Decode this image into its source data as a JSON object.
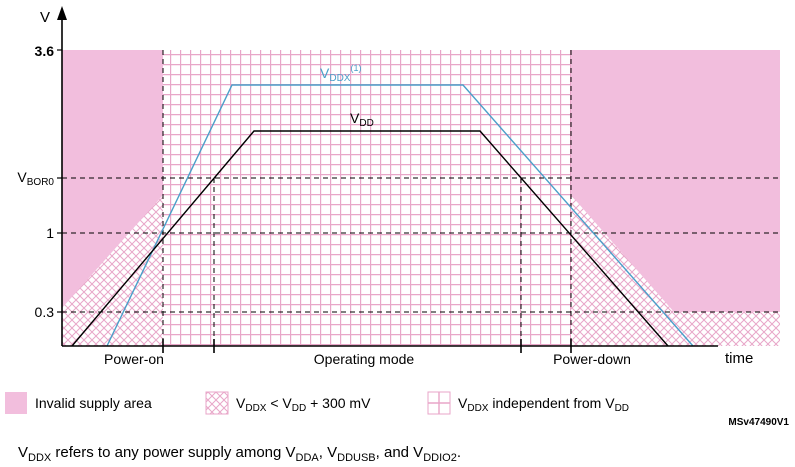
{
  "axes": {
    "y_label": "V",
    "x_label": "time",
    "y_ticks": {
      "t36": "3.6",
      "bor_main": "V",
      "bor_sub": "BOR0",
      "t1": "1",
      "t03": "0.3"
    }
  },
  "curves": {
    "vddx_main": "V",
    "vddx_sub": "DDX",
    "vddx_note": "(1)",
    "vdd_main": "V",
    "vdd_sub": "DD",
    "vddx_color": "#4a9fc9",
    "vdd_color": "#000000"
  },
  "phases": {
    "power_on": "Power-on",
    "operating": "Operating mode",
    "power_down": "Power-down"
  },
  "legend": {
    "invalid": "Invalid supply area",
    "lt_v1": "V",
    "lt_s1": "DDX",
    "lt_mid": " < V",
    "lt_s2": "DD",
    "lt_end": " + 300 mV",
    "ind_v1": "V",
    "ind_s1": "DDX",
    "ind_mid": " independent from V",
    "ind_s2": "DD",
    "invalid_color": "#f2bedd",
    "grid_color": "#e8a6c8"
  },
  "ref_code": "MSv47490V1",
  "footnote": {
    "v": "V",
    "s_ddx": "DDX",
    "t1": " refers to any power supply among V",
    "s_dda": "DDA",
    "t2": ", V",
    "s_ddusb": "DDUSB",
    "t3": ", and V",
    "s_ddio2": "DDIO2",
    "t4": "."
  }
}
